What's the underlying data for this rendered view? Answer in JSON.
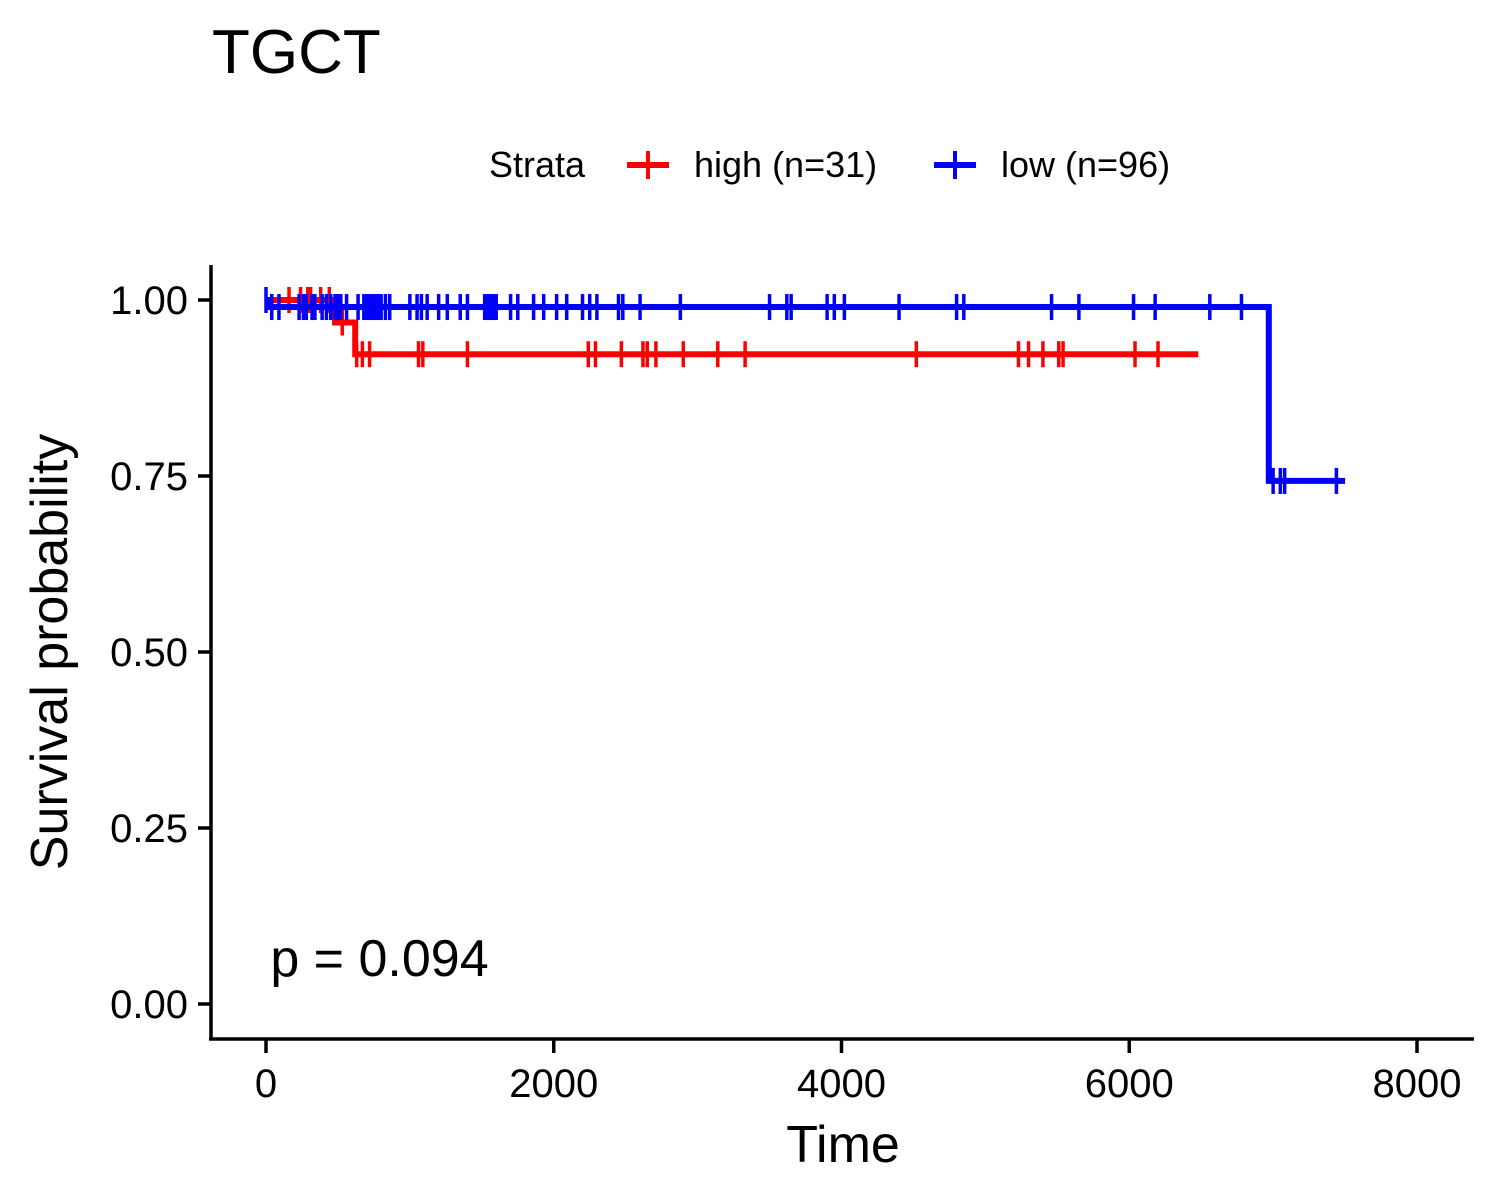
{
  "chart_data": {
    "type": "line",
    "subtype": "kaplan-meier",
    "title": "TGCT",
    "xlabel": "Time",
    "ylabel": "Survival probability",
    "xlim": [
      -400,
      8400
    ],
    "ylim": [
      -0.05,
      1.05
    ],
    "x_ticks": [
      0,
      2000,
      4000,
      6000,
      8000
    ],
    "x_tick_labels": [
      "0",
      "2000",
      "4000",
      "6000",
      "8000"
    ],
    "y_ticks": [
      0,
      0.25,
      0.5,
      0.75,
      1.0
    ],
    "y_tick_labels": [
      "0.00",
      "0.25",
      "0.50",
      "0.75",
      "1.00"
    ],
    "grid": false,
    "legend": {
      "title": "Strata",
      "position": "top",
      "entries": [
        "high (n=31)",
        "low (n=96)"
      ]
    },
    "annotation": {
      "text": "p = 0.094",
      "x": 30,
      "y": 0.04
    },
    "series": [
      {
        "name": "high (n=31)",
        "color": "#ff0000",
        "steps": [
          {
            "x": 0,
            "y": 1.0
          },
          {
            "x": 480,
            "y": 0.968
          },
          {
            "x": 620,
            "y": 0.923
          },
          {
            "x": 6480,
            "y": 0.923
          }
        ],
        "censored": [
          {
            "x": 160,
            "y": 1.0
          },
          {
            "x": 240,
            "y": 1.0
          },
          {
            "x": 290,
            "y": 1.0
          },
          {
            "x": 310,
            "y": 1.0
          },
          {
            "x": 380,
            "y": 1.0
          },
          {
            "x": 440,
            "y": 1.0
          },
          {
            "x": 530,
            "y": 0.968
          },
          {
            "x": 630,
            "y": 0.923
          },
          {
            "x": 670,
            "y": 0.923
          },
          {
            "x": 720,
            "y": 0.923
          },
          {
            "x": 1060,
            "y": 0.923
          },
          {
            "x": 1090,
            "y": 0.923
          },
          {
            "x": 1400,
            "y": 0.923
          },
          {
            "x": 2240,
            "y": 0.923
          },
          {
            "x": 2290,
            "y": 0.923
          },
          {
            "x": 2470,
            "y": 0.923
          },
          {
            "x": 2620,
            "y": 0.923
          },
          {
            "x": 2650,
            "y": 0.923
          },
          {
            "x": 2710,
            "y": 0.923
          },
          {
            "x": 2900,
            "y": 0.923
          },
          {
            "x": 3140,
            "y": 0.923
          },
          {
            "x": 3330,
            "y": 0.923
          },
          {
            "x": 4520,
            "y": 0.923
          },
          {
            "x": 5230,
            "y": 0.923
          },
          {
            "x": 5300,
            "y": 0.923
          },
          {
            "x": 5400,
            "y": 0.923
          },
          {
            "x": 5510,
            "y": 0.923
          },
          {
            "x": 5540,
            "y": 0.923
          },
          {
            "x": 6040,
            "y": 0.923
          },
          {
            "x": 6200,
            "y": 0.923
          }
        ]
      },
      {
        "name": "low (n=96)",
        "color": "#0000ff",
        "steps": [
          {
            "x": 0,
            "y": 1.0
          },
          {
            "x": 30,
            "y": 0.99
          },
          {
            "x": 6970,
            "y": 0.743
          },
          {
            "x": 7500,
            "y": 0.743
          }
        ],
        "censored": [
          {
            "x": 0,
            "y": 1.0
          },
          {
            "x": 40,
            "y": 0.99
          },
          {
            "x": 90,
            "y": 0.99
          },
          {
            "x": 230,
            "y": 0.99
          },
          {
            "x": 260,
            "y": 0.99
          },
          {
            "x": 280,
            "y": 0.99
          },
          {
            "x": 320,
            "y": 0.99
          },
          {
            "x": 340,
            "y": 0.99
          },
          {
            "x": 390,
            "y": 0.99
          },
          {
            "x": 420,
            "y": 0.99
          },
          {
            "x": 450,
            "y": 0.99
          },
          {
            "x": 480,
            "y": 0.99
          },
          {
            "x": 500,
            "y": 0.99
          },
          {
            "x": 520,
            "y": 0.99
          },
          {
            "x": 560,
            "y": 0.99
          },
          {
            "x": 640,
            "y": 0.99
          },
          {
            "x": 680,
            "y": 0.99
          },
          {
            "x": 700,
            "y": 0.99
          },
          {
            "x": 720,
            "y": 0.99
          },
          {
            "x": 740,
            "y": 0.99
          },
          {
            "x": 760,
            "y": 0.99
          },
          {
            "x": 780,
            "y": 0.99
          },
          {
            "x": 800,
            "y": 0.99
          },
          {
            "x": 830,
            "y": 0.99
          },
          {
            "x": 860,
            "y": 0.99
          },
          {
            "x": 1000,
            "y": 0.99
          },
          {
            "x": 1050,
            "y": 0.99
          },
          {
            "x": 1080,
            "y": 0.99
          },
          {
            "x": 1120,
            "y": 0.99
          },
          {
            "x": 1200,
            "y": 0.99
          },
          {
            "x": 1260,
            "y": 0.99
          },
          {
            "x": 1350,
            "y": 0.99
          },
          {
            "x": 1400,
            "y": 0.99
          },
          {
            "x": 1520,
            "y": 0.99
          },
          {
            "x": 1540,
            "y": 0.99
          },
          {
            "x": 1560,
            "y": 0.99
          },
          {
            "x": 1580,
            "y": 0.99
          },
          {
            "x": 1600,
            "y": 0.99
          },
          {
            "x": 1700,
            "y": 0.99
          },
          {
            "x": 1750,
            "y": 0.99
          },
          {
            "x": 1860,
            "y": 0.99
          },
          {
            "x": 1930,
            "y": 0.99
          },
          {
            "x": 2020,
            "y": 0.99
          },
          {
            "x": 2090,
            "y": 0.99
          },
          {
            "x": 2200,
            "y": 0.99
          },
          {
            "x": 2250,
            "y": 0.99
          },
          {
            "x": 2300,
            "y": 0.99
          },
          {
            "x": 2450,
            "y": 0.99
          },
          {
            "x": 2480,
            "y": 0.99
          },
          {
            "x": 2600,
            "y": 0.99
          },
          {
            "x": 2880,
            "y": 0.99
          },
          {
            "x": 3500,
            "y": 0.99
          },
          {
            "x": 3620,
            "y": 0.99
          },
          {
            "x": 3650,
            "y": 0.99
          },
          {
            "x": 3900,
            "y": 0.99
          },
          {
            "x": 3950,
            "y": 0.99
          },
          {
            "x": 4020,
            "y": 0.99
          },
          {
            "x": 4400,
            "y": 0.99
          },
          {
            "x": 4800,
            "y": 0.99
          },
          {
            "x": 4850,
            "y": 0.99
          },
          {
            "x": 5460,
            "y": 0.99
          },
          {
            "x": 5650,
            "y": 0.99
          },
          {
            "x": 6030,
            "y": 0.99
          },
          {
            "x": 6180,
            "y": 0.99
          },
          {
            "x": 6560,
            "y": 0.99
          },
          {
            "x": 6780,
            "y": 0.99
          },
          {
            "x": 7000,
            "y": 0.743
          },
          {
            "x": 7050,
            "y": 0.743
          },
          {
            "x": 7080,
            "y": 0.743
          },
          {
            "x": 7440,
            "y": 0.743
          }
        ]
      }
    ]
  }
}
